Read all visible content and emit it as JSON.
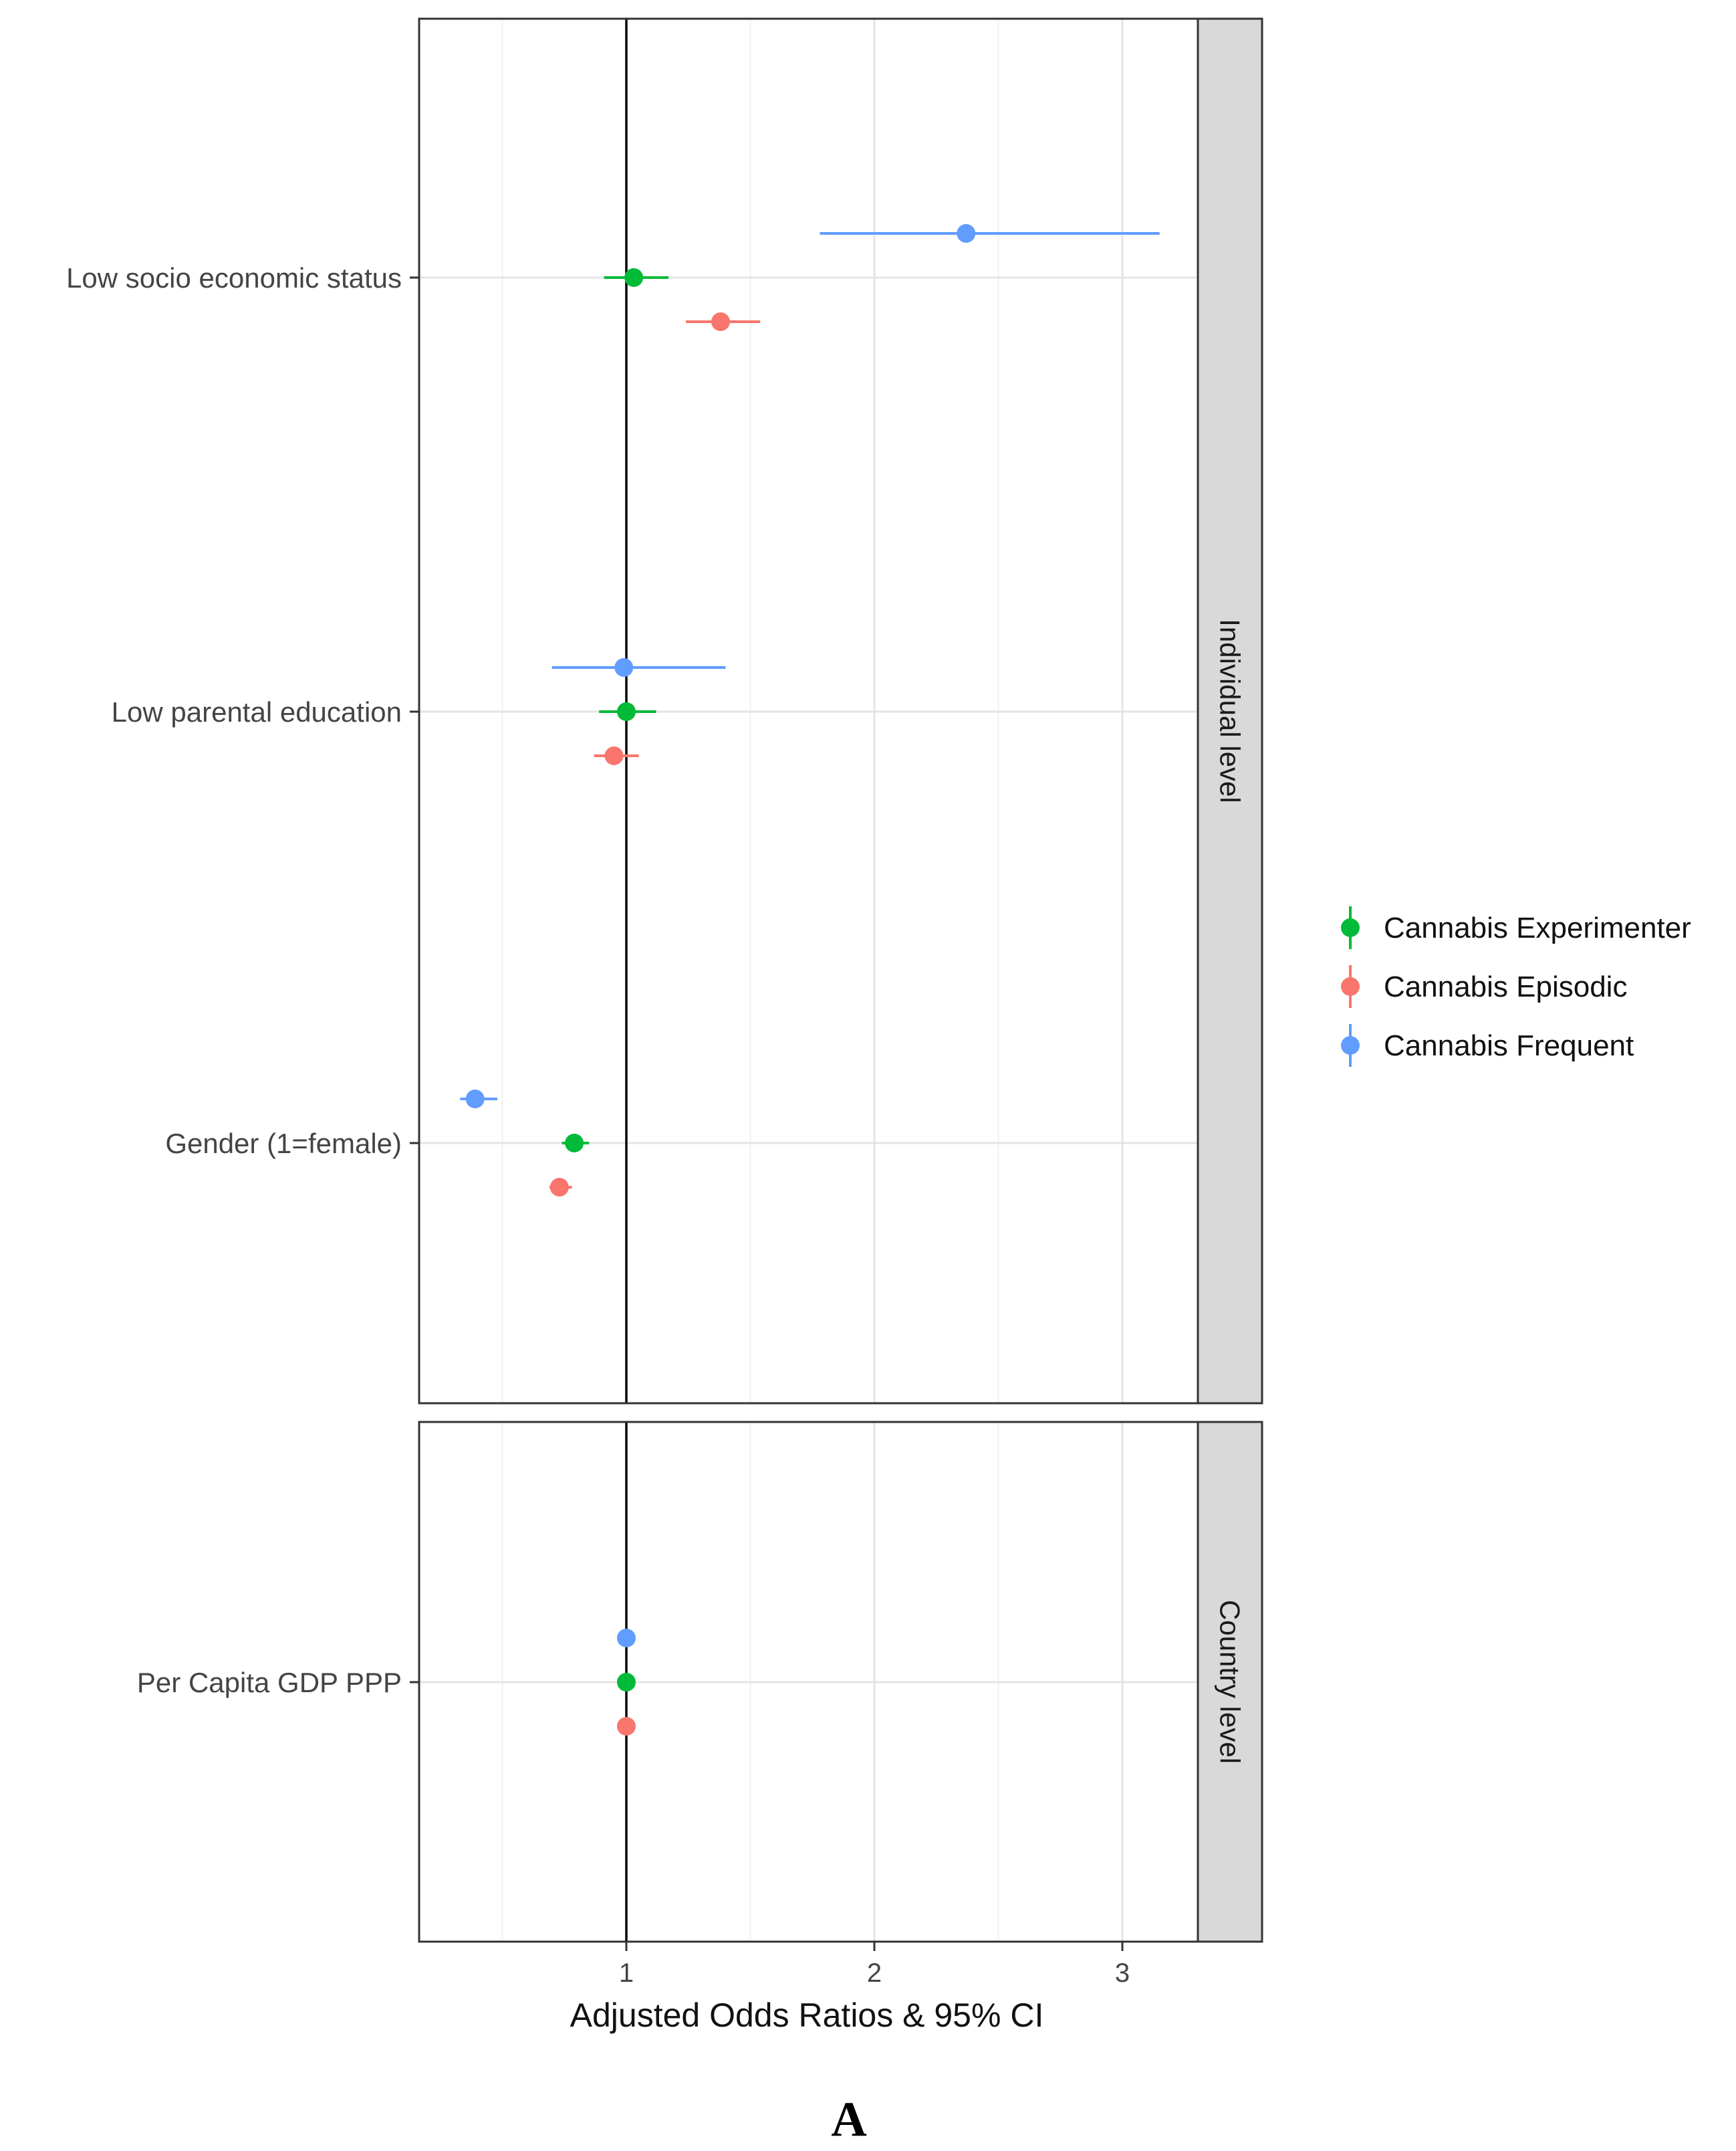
{
  "chart_data": {
    "type": "forest",
    "xlabel": "Adjusted Odds Ratios & 95% CI",
    "panel_label": "A",
    "x_ticks": [
      1,
      2,
      3
    ],
    "xlim": [
      0.18,
      3.55
    ],
    "reference_line": 1,
    "grid": true,
    "legend_position": "right",
    "series": [
      {
        "name": "Cannabis Experimenter",
        "color": "#00BA38"
      },
      {
        "name": "Cannabis Episodic",
        "color": "#F8766D"
      },
      {
        "name": "Cannabis Frequent",
        "color": "#619CFF"
      }
    ],
    "facets": [
      {
        "strip": "Individual level",
        "categories": [
          {
            "label": "Low socio economic status",
            "estimates": [
              {
                "series": "Cannabis Frequent",
                "or": 2.37,
                "lo": 1.78,
                "hi": 3.15
              },
              {
                "series": "Cannabis Experimenter",
                "or": 1.03,
                "lo": 0.91,
                "hi": 1.17
              },
              {
                "series": "Cannabis Episodic",
                "or": 1.38,
                "lo": 1.24,
                "hi": 1.54
              }
            ]
          },
          {
            "label": "Low parental education",
            "estimates": [
              {
                "series": "Cannabis Frequent",
                "or": 0.99,
                "lo": 0.7,
                "hi": 1.4
              },
              {
                "series": "Cannabis Experimenter",
                "or": 1.0,
                "lo": 0.89,
                "hi": 1.12
              },
              {
                "series": "Cannabis Episodic",
                "or": 0.95,
                "lo": 0.87,
                "hi": 1.05
              }
            ]
          },
          {
            "label": "Gender (1=female)",
            "estimates": [
              {
                "series": "Cannabis Frequent",
                "or": 0.39,
                "lo": 0.33,
                "hi": 0.48
              },
              {
                "series": "Cannabis Experimenter",
                "or": 0.79,
                "lo": 0.74,
                "hi": 0.85
              },
              {
                "series": "Cannabis Episodic",
                "or": 0.73,
                "lo": 0.69,
                "hi": 0.78
              }
            ]
          }
        ]
      },
      {
        "strip": "Country level",
        "categories": [
          {
            "label": "Per Capita GDP PPP",
            "estimates": [
              {
                "series": "Cannabis Frequent",
                "or": 1.0,
                "lo": 0.99,
                "hi": 1.01
              },
              {
                "series": "Cannabis Experimenter",
                "or": 1.0,
                "lo": 0.99,
                "hi": 1.01
              },
              {
                "series": "Cannabis Episodic",
                "or": 1.0,
                "lo": 0.99,
                "hi": 1.01
              }
            ]
          }
        ]
      }
    ]
  }
}
